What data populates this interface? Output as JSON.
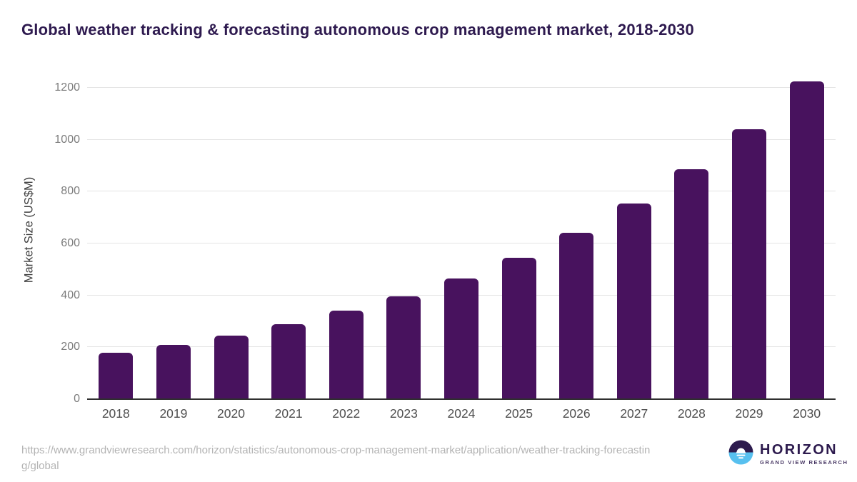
{
  "chart_data": {
    "type": "bar",
    "title": "Global weather tracking & forecasting autonomous crop management market, 2018-2030",
    "categories": [
      "2018",
      "2019",
      "2020",
      "2021",
      "2022",
      "2023",
      "2024",
      "2025",
      "2026",
      "2027",
      "2028",
      "2029",
      "2030"
    ],
    "values": [
      180,
      210,
      245,
      290,
      340,
      395,
      465,
      545,
      640,
      755,
      885,
      1040,
      1225
    ],
    "xlabel": "",
    "ylabel": "Market Size (US$M)",
    "ylim": [
      0,
      1277
    ],
    "yticks": [
      0,
      200,
      400,
      600,
      800,
      1000,
      1200
    ],
    "grid": true,
    "legend": false,
    "bar_color": "#48125e"
  },
  "footer": {
    "source_url": "https://www.grandviewresearch.com/horizon/statistics/autonomous-crop-management-market/application/weather-tracking-forecasting/global",
    "logo": {
      "brand": "HORIZON",
      "sub_brand": "GRAND VIEW RESEARCH"
    }
  },
  "colors": {
    "title_text": "#2e1a4f",
    "bar": "#48125e",
    "gridline": "#e4e4e4",
    "axis_line": "#2f2f2f",
    "y_tick_text": "#7c7c7c",
    "x_tick_text": "#4e4e4e",
    "source_text": "#b3b3b3",
    "logo_dark": "#2d1b4e",
    "logo_blue": "#57c0ef"
  }
}
